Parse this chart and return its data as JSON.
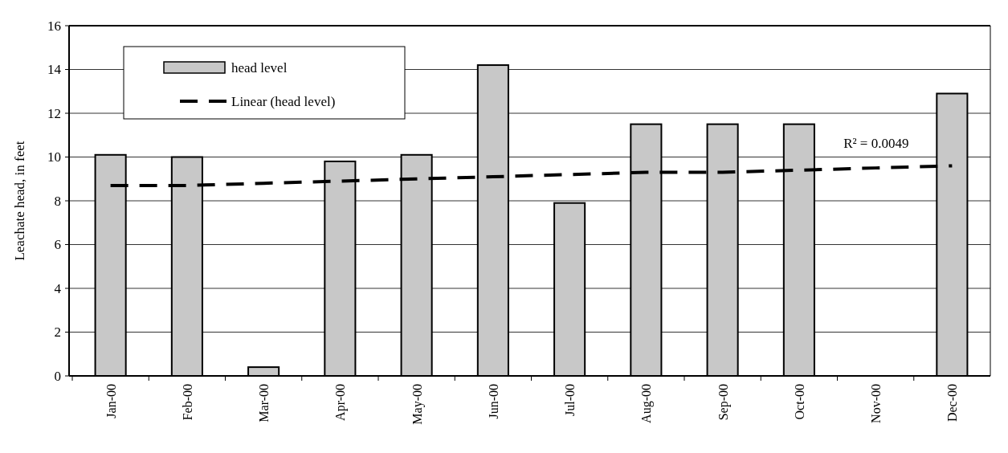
{
  "chart_data": {
    "type": "bar",
    "ylabel": "Leachate head, in feet",
    "categories": [
      "Jan-00",
      "Feb-00",
      "Mar-00",
      "Apr-00",
      "May-00",
      "Jun-00",
      "Jul-00",
      "Aug-00",
      "Sep-00",
      "Oct-00",
      "Nov-00",
      "Dec-00"
    ],
    "series": [
      {
        "name": "head level",
        "color": "#c8c8c8",
        "values": [
          10.1,
          10.0,
          0.4,
          9.8,
          10.1,
          14.2,
          7.9,
          11.5,
          11.5,
          11.5,
          null,
          12.9
        ]
      },
      {
        "name": "Linear (head level)",
        "type": "line",
        "color": "#000000",
        "line_style": "dashed",
        "values": [
          8.7,
          8.7,
          8.8,
          8.9,
          9.0,
          9.1,
          9.2,
          9.3,
          9.3,
          9.4,
          9.5,
          9.6
        ]
      }
    ],
    "annotations": [
      "R² = 0.0049"
    ],
    "ylim": [
      0,
      16
    ],
    "yticks": [
      0,
      2,
      4,
      6,
      8,
      10,
      12,
      14,
      16
    ],
    "grid": "y",
    "legend": "top left"
  }
}
